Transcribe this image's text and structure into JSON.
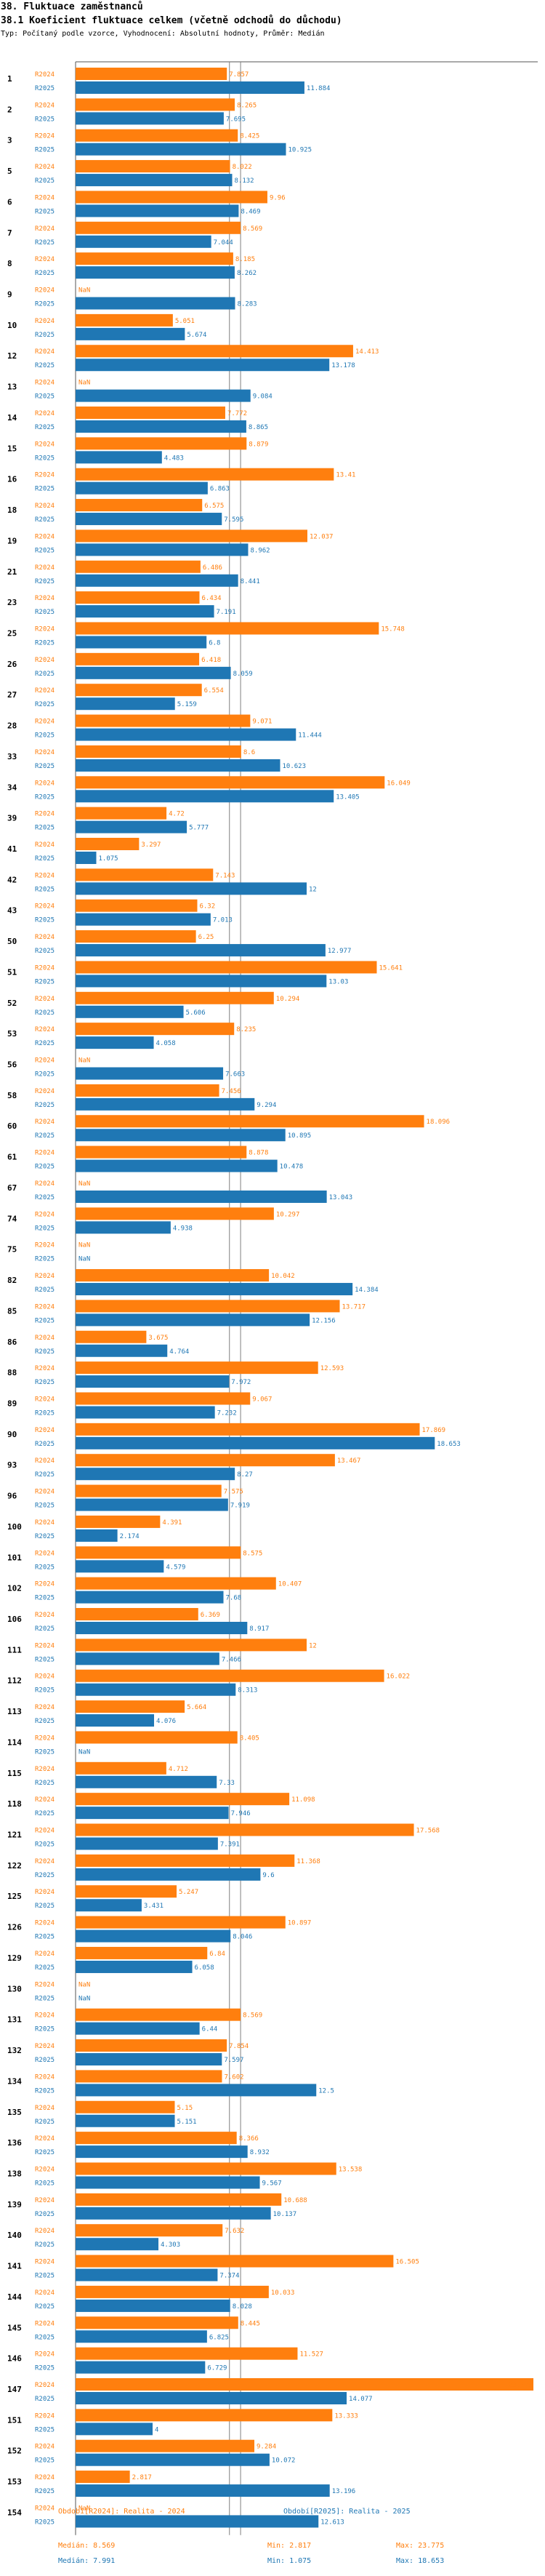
{
  "header": {
    "title": "38. Fluktuace zaměstnanců",
    "subtitle": "38.1 Koeficient fluktuace celkem (včetně odchodů do důchodu)",
    "description": "Typ: Počítaný podle vzorce, Vyhodnocení: Absolutní hodnoty, Průměr: Medián"
  },
  "colors": {
    "r2024": "#ff7f0e",
    "r2025": "#1f77b4",
    "grid": "#7f7f7f"
  },
  "chart_data": {
    "type": "bar",
    "orientation": "horizontal",
    "series_labels": [
      "R2024",
      "R2025"
    ],
    "xlim": [
      0,
      24
    ],
    "reference_lines": [
      {
        "name": "R2024 median",
        "value": 8.569
      },
      {
        "name": "R2025 median",
        "value": 7.991
      }
    ],
    "categories": [
      "1",
      "2",
      "3",
      "5",
      "6",
      "7",
      "8",
      "9",
      "10",
      "12",
      "13",
      "14",
      "15",
      "16",
      "18",
      "19",
      "21",
      "23",
      "25",
      "26",
      "27",
      "28",
      "33",
      "34",
      "39",
      "41",
      "42",
      "43",
      "50",
      "51",
      "52",
      "53",
      "56",
      "58",
      "60",
      "61",
      "67",
      "74",
      "75",
      "82",
      "85",
      "86",
      "88",
      "89",
      "90",
      "93",
      "96",
      "100",
      "101",
      "102",
      "106",
      "111",
      "112",
      "113",
      "114",
      "115",
      "118",
      "121",
      "122",
      "125",
      "126",
      "129",
      "130",
      "131",
      "132",
      "134",
      "135",
      "136",
      "138",
      "139",
      "140",
      "141",
      "144",
      "145",
      "146",
      "147",
      "151",
      "152",
      "153",
      "154"
    ],
    "series": [
      {
        "name": "R2024",
        "values": [
          7.857,
          8.265,
          8.425,
          8.022,
          9.96,
          8.569,
          8.185,
          null,
          5.051,
          14.413,
          null,
          7.772,
          8.879,
          13.41,
          6.575,
          12.037,
          6.486,
          6.434,
          15.748,
          6.418,
          6.554,
          9.071,
          8.6,
          16.049,
          4.72,
          3.297,
          7.143,
          6.32,
          6.25,
          15.641,
          10.294,
          8.235,
          null,
          7.456,
          18.096,
          8.878,
          null,
          10.297,
          null,
          10.042,
          13.717,
          3.675,
          12.593,
          9.067,
          17.869,
          13.467,
          7.575,
          4.391,
          8.575,
          10.407,
          6.369,
          12,
          16.022,
          5.664,
          8.405,
          4.712,
          11.098,
          17.568,
          11.368,
          5.247,
          10.897,
          6.84,
          null,
          8.569,
          7.854,
          7.602,
          5.15,
          8.366,
          13.538,
          10.688,
          7.632,
          16.505,
          10.033,
          8.445,
          11.527,
          23.775,
          13.333,
          9.284,
          2.817,
          null
        ]
      },
      {
        "name": "R2025",
        "values": [
          11.884,
          7.695,
          10.925,
          8.132,
          8.469,
          7.044,
          8.262,
          8.283,
          5.674,
          13.178,
          9.084,
          8.865,
          4.483,
          6.863,
          7.595,
          8.962,
          8.441,
          7.191,
          6.8,
          8.059,
          5.159,
          11.444,
          10.623,
          13.405,
          5.777,
          1.075,
          12,
          7.013,
          12.977,
          13.03,
          5.606,
          4.058,
          7.663,
          9.294,
          10.895,
          10.478,
          13.043,
          4.938,
          null,
          14.384,
          12.156,
          4.764,
          7.972,
          7.232,
          18.653,
          8.27,
          7.919,
          2.174,
          4.579,
          7.68,
          8.917,
          7.466,
          8.313,
          4.076,
          null,
          7.33,
          7.946,
          7.391,
          9.6,
          3.431,
          8.046,
          6.058,
          null,
          6.44,
          7.597,
          12.5,
          5.151,
          8.932,
          9.567,
          10.137,
          4.303,
          7.374,
          8.028,
          6.825,
          6.729,
          14.077,
          4,
          10.072,
          13.196,
          12.613
        ]
      }
    ]
  },
  "legend": {
    "left_series": "Období[R2024]: Realita - 2024",
    "right_series": "Období[R2025]: Realita - 2025",
    "r2024_median": "Medián: 8.569",
    "r2024_min": "Min: 2.817",
    "r2024_max": "Max: 23.775",
    "r2025_median": "Medián: 7.991",
    "r2025_min": "Min: 1.075",
    "r2025_max": "Max: 18.653"
  }
}
